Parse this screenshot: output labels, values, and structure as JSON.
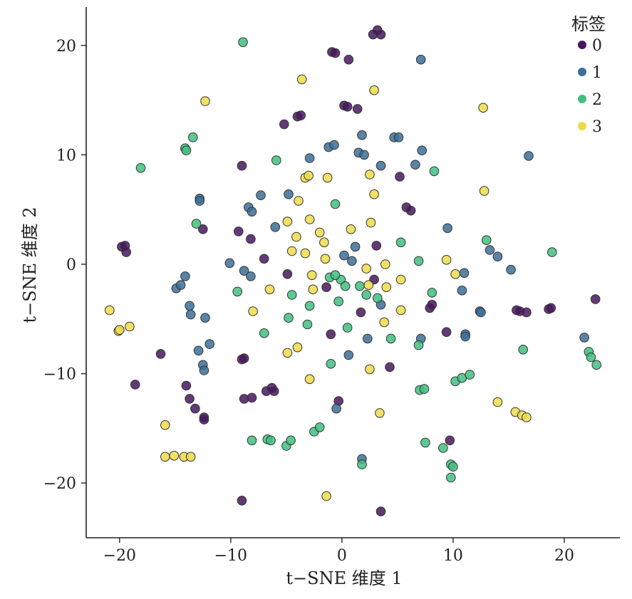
{
  "chart_data": {
    "type": "scatter",
    "xlabel": "t−SNE 维度 1",
    "ylabel": "t−SNE 维度 2",
    "xlim": [
      -23,
      25
    ],
    "ylim": [
      -25,
      23.5
    ],
    "xticks": [
      -20,
      -10,
      0,
      10,
      20
    ],
    "yticks": [
      -20,
      -10,
      0,
      10,
      20
    ],
    "tick_labels": {
      "x": [
        "−20",
        "−10",
        "0",
        "10",
        "20"
      ],
      "y": [
        "−20",
        "−10",
        "0",
        "10",
        "20"
      ]
    },
    "legend": {
      "title": "标签",
      "position": "top-right"
    },
    "grid": false,
    "colors": {
      "0": "#46175e",
      "1": "#3c6e98",
      "2": "#3fbf80",
      "3": "#eddb4a"
    },
    "series": [
      {
        "name": "0",
        "color": "#46175e",
        "points": [
          [
            -0.9,
            19.4
          ],
          [
            -0.6,
            19.3
          ],
          [
            0.6,
            18.7
          ],
          [
            2.8,
            21.0
          ],
          [
            3.2,
            21.4
          ],
          [
            3.5,
            21.0
          ],
          [
            0.2,
            14.5
          ],
          [
            0.5,
            14.4
          ],
          [
            1.4,
            14.2
          ],
          [
            -4.0,
            13.5
          ],
          [
            -3.7,
            13.6
          ],
          [
            -5.2,
            12.8
          ],
          [
            -9.0,
            9.0
          ],
          [
            5.2,
            8.0
          ],
          [
            5.8,
            5.2
          ],
          [
            6.2,
            4.9
          ],
          [
            -12.5,
            3.2
          ],
          [
            -9.3,
            3.0
          ],
          [
            -8.2,
            2.3
          ],
          [
            -19.8,
            1.6
          ],
          [
            -19.5,
            1.7
          ],
          [
            -19.4,
            1.1
          ],
          [
            -7.0,
            0.5
          ],
          [
            -4.9,
            -0.9
          ],
          [
            3.1,
            1.7
          ],
          [
            2.9,
            -1.4
          ],
          [
            -1.4,
            -2.1
          ],
          [
            1.7,
            -4.4
          ],
          [
            -1.0,
            -6.4
          ],
          [
            4.3,
            -9.4
          ],
          [
            9.4,
            -6.2
          ],
          [
            7.9,
            -4.0
          ],
          [
            8.1,
            -3.7
          ],
          [
            15.7,
            -4.2
          ],
          [
            16.0,
            -4.3
          ],
          [
            16.6,
            -4.4
          ],
          [
            18.6,
            -4.1
          ],
          [
            18.8,
            -4.0
          ],
          [
            22.8,
            -3.2
          ],
          [
            -16.3,
            -8.2
          ],
          [
            -18.6,
            -11.0
          ],
          [
            -9.0,
            -8.7
          ],
          [
            -8.8,
            -8.6
          ],
          [
            -8.8,
            -12.3
          ],
          [
            -8.1,
            -12.2
          ],
          [
            -6.8,
            -11.6
          ],
          [
            -6.3,
            -11.3
          ],
          [
            -6.1,
            -11.6
          ],
          [
            -14.0,
            -11.1
          ],
          [
            -13.7,
            -12.3
          ],
          [
            -13.2,
            -13.2
          ],
          [
            -12.4,
            -14.0
          ],
          [
            -12.4,
            -14.2
          ],
          [
            -0.3,
            -12.5
          ],
          [
            9.7,
            -16.1
          ],
          [
            -9.0,
            -21.6
          ],
          [
            3.5,
            -22.6
          ]
        ]
      },
      {
        "name": "1",
        "color": "#3c6e98",
        "points": [
          [
            7.1,
            18.7
          ],
          [
            1.8,
            11.8
          ],
          [
            4.7,
            11.6
          ],
          [
            5.1,
            11.6
          ],
          [
            7.2,
            10.4
          ],
          [
            1.5,
            10.2
          ],
          [
            2.0,
            10.0
          ],
          [
            16.8,
            9.9
          ],
          [
            -1.2,
            10.7
          ],
          [
            -0.7,
            10.9
          ],
          [
            -2.9,
            9.7
          ],
          [
            6.6,
            9.1
          ],
          [
            3.5,
            9.0
          ],
          [
            -12.8,
            6.0
          ],
          [
            -12.8,
            5.8
          ],
          [
            -7.3,
            6.3
          ],
          [
            -4.8,
            6.4
          ],
          [
            -8.4,
            5.2
          ],
          [
            -8.1,
            4.8
          ],
          [
            -6.0,
            3.4
          ],
          [
            9.5,
            3.3
          ],
          [
            13.3,
            1.3
          ],
          [
            14.0,
            0.7
          ],
          [
            15.2,
            -0.5
          ],
          [
            1.2,
            1.6
          ],
          [
            0.9,
            0.3
          ],
          [
            0.2,
            0.8
          ],
          [
            -10.1,
            0.1
          ],
          [
            -8.8,
            -0.6
          ],
          [
            -8.2,
            -1.1
          ],
          [
            -14.1,
            -1.1
          ],
          [
            -14.9,
            -2.2
          ],
          [
            -14.5,
            -1.9
          ],
          [
            -13.7,
            -3.8
          ],
          [
            -13.6,
            -4.6
          ],
          [
            -12.3,
            -4.9
          ],
          [
            -12.9,
            -7.9
          ],
          [
            -11.9,
            -7.3
          ],
          [
            -12.5,
            -9.2
          ],
          [
            -12.4,
            -9.7
          ],
          [
            3.5,
            -3.7
          ],
          [
            2.3,
            -6.8
          ],
          [
            0.6,
            -8.3
          ],
          [
            7.1,
            -6.8
          ],
          [
            11.0,
            -0.8
          ],
          [
            10.8,
            -2.4
          ],
          [
            12.4,
            -4.3
          ],
          [
            12.5,
            -4.4
          ],
          [
            11.1,
            -6.4
          ],
          [
            11.1,
            -6.6
          ],
          [
            21.8,
            -6.7
          ],
          [
            -0.5,
            -13.2
          ],
          [
            1.8,
            -17.8
          ]
        ]
      },
      {
        "name": "2",
        "color": "#3fbf80",
        "points": [
          [
            -8.9,
            20.3
          ],
          [
            -13.4,
            11.6
          ],
          [
            -14.1,
            10.6
          ],
          [
            -14.0,
            10.4
          ],
          [
            -18.1,
            8.8
          ],
          [
            -5.9,
            9.5
          ],
          [
            8.3,
            8.5
          ],
          [
            -0.6,
            5.5
          ],
          [
            -13.1,
            3.7
          ],
          [
            13.0,
            2.2
          ],
          [
            18.9,
            1.1
          ],
          [
            5.3,
            2.0
          ],
          [
            6.9,
            0.3
          ],
          [
            -1.1,
            -1.2
          ],
          [
            -0.1,
            -1.4
          ],
          [
            -0.6,
            -1.0
          ],
          [
            0.3,
            -2.0
          ],
          [
            -0.3,
            -3.4
          ],
          [
            2.2,
            -2.8
          ],
          [
            1.6,
            -2.0
          ],
          [
            3.2,
            -3.1
          ],
          [
            -9.4,
            -2.5
          ],
          [
            -4.5,
            -2.8
          ],
          [
            -2.9,
            -3.8
          ],
          [
            -3.1,
            -5.5
          ],
          [
            -4.8,
            -4.9
          ],
          [
            0.5,
            -5.8
          ],
          [
            -7.0,
            -6.3
          ],
          [
            4.4,
            -6.8
          ],
          [
            6.9,
            -7.4
          ],
          [
            8.1,
            -2.6
          ],
          [
            16.3,
            -7.8
          ],
          [
            -1.0,
            -9.1
          ],
          [
            22.2,
            -8.0
          ],
          [
            22.4,
            -8.5
          ],
          [
            22.9,
            -9.2
          ],
          [
            7.0,
            -11.5
          ],
          [
            7.4,
            -11.4
          ],
          [
            10.2,
            -10.7
          ],
          [
            10.8,
            -10.4
          ],
          [
            11.5,
            -10.1
          ],
          [
            -8.1,
            -16.1
          ],
          [
            -6.7,
            -16.0
          ],
          [
            -6.4,
            -16.1
          ],
          [
            -5.0,
            -16.6
          ],
          [
            -4.6,
            -16.1
          ],
          [
            -2.5,
            -15.3
          ],
          [
            -2.0,
            -14.9
          ],
          [
            1.8,
            -18.3
          ],
          [
            7.5,
            -16.3
          ],
          [
            9.1,
            -16.8
          ],
          [
            9.8,
            -18.3
          ],
          [
            10.0,
            -18.5
          ],
          [
            9.8,
            -19.5
          ]
        ]
      },
      {
        "name": "3",
        "color": "#eddb4a",
        "points": [
          [
            -3.6,
            16.9
          ],
          [
            2.9,
            15.9
          ],
          [
            -12.3,
            14.9
          ],
          [
            12.7,
            14.3
          ],
          [
            -3.3,
            7.9
          ],
          [
            -3.0,
            8.1
          ],
          [
            -1.3,
            7.9
          ],
          [
            2.5,
            8.2
          ],
          [
            2.9,
            6.4
          ],
          [
            12.8,
            6.7
          ],
          [
            -3.9,
            5.8
          ],
          [
            -4.9,
            3.9
          ],
          [
            -2.9,
            4.1
          ],
          [
            -2.0,
            2.9
          ],
          [
            0.8,
            3.2
          ],
          [
            2.6,
            3.8
          ],
          [
            -4.1,
            2.5
          ],
          [
            -4.5,
            1.2
          ],
          [
            -1.6,
            2.0
          ],
          [
            -3.3,
            1.0
          ],
          [
            -1.5,
            0.5
          ],
          [
            2.2,
            -0.4
          ],
          [
            3.9,
            0.0
          ],
          [
            9.4,
            0.4
          ],
          [
            10.2,
            -0.9
          ],
          [
            -2.7,
            -1.0
          ],
          [
            2.4,
            -1.9
          ],
          [
            4.0,
            -2.1
          ],
          [
            5.3,
            -1.4
          ],
          [
            -6.5,
            -2.3
          ],
          [
            -2.6,
            -2.3
          ],
          [
            -8.0,
            -4.3
          ],
          [
            -4.0,
            -7.6
          ],
          [
            -4.9,
            -8.1
          ],
          [
            3.8,
            -5.3
          ],
          [
            5.3,
            -4.2
          ],
          [
            2.5,
            -9.6
          ],
          [
            -2.9,
            -10.5
          ],
          [
            -20.9,
            -4.2
          ],
          [
            -20.1,
            -6.1
          ],
          [
            -20.0,
            -6.0
          ],
          [
            -19.1,
            -5.7
          ],
          [
            3.4,
            -13.6
          ],
          [
            14.0,
            -12.6
          ],
          [
            15.6,
            -13.5
          ],
          [
            16.2,
            -13.8
          ],
          [
            16.6,
            -14.0
          ],
          [
            -15.9,
            -14.7
          ],
          [
            -15.9,
            -17.6
          ],
          [
            -15.1,
            -17.5
          ],
          [
            -14.2,
            -17.6
          ],
          [
            -13.6,
            -17.6
          ],
          [
            -1.4,
            -21.2
          ]
        ]
      }
    ]
  }
}
